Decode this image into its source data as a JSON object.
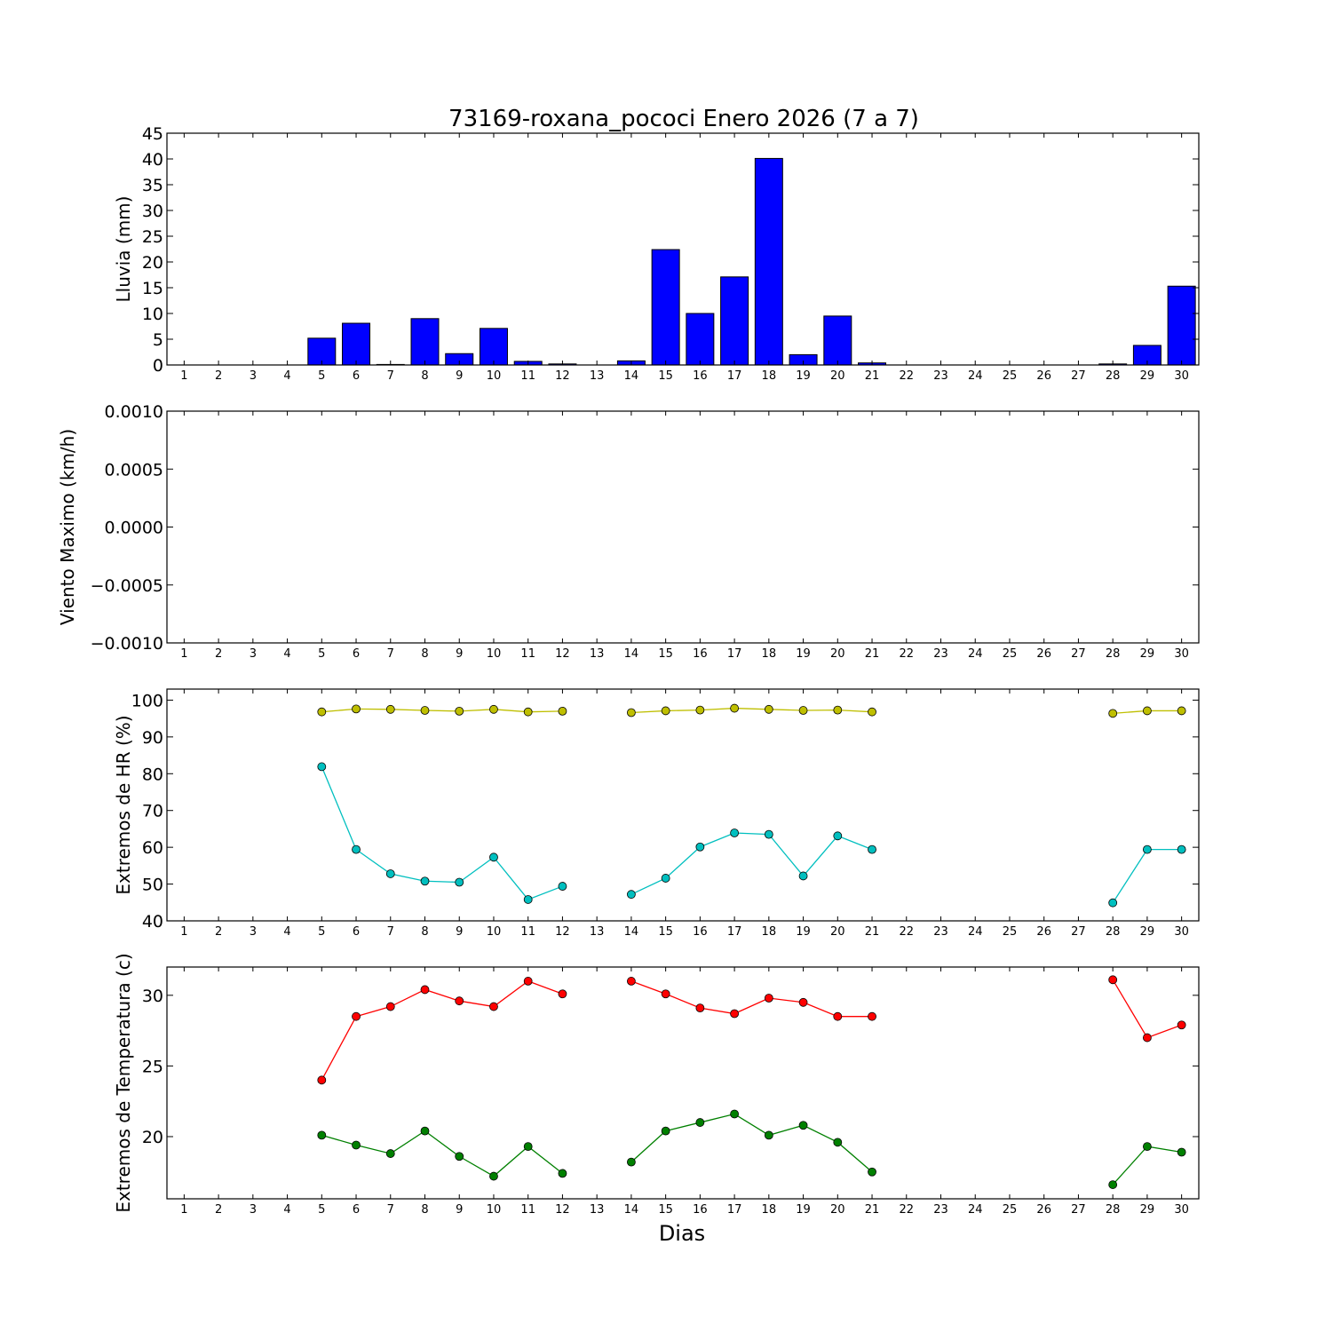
{
  "title": "73169-roxana_pococi Enero 2026  (7 a 7)",
  "xlabel": "Dias",
  "colors": {
    "bar": "#0000ff",
    "hr_max": "#bfbf00",
    "hr_min": "#00bfbf",
    "temp_max": "#ff0000",
    "temp_min": "#008000"
  },
  "chart_data": [
    {
      "type": "bar",
      "ylabel": "Lluvia (mm)",
      "categories": [
        1,
        2,
        3,
        4,
        5,
        6,
        7,
        8,
        9,
        10,
        11,
        12,
        13,
        14,
        15,
        16,
        17,
        18,
        19,
        20,
        21,
        22,
        23,
        24,
        25,
        26,
        27,
        28,
        29,
        30
      ],
      "values": [
        0,
        0,
        0,
        0,
        5.2,
        8.1,
        0.1,
        9.0,
        2.2,
        7.1,
        0.7,
        0.2,
        0,
        0.8,
        22.4,
        10.0,
        17.1,
        40.1,
        2.0,
        9.5,
        0.4,
        0,
        0,
        0,
        0,
        0,
        0,
        0.2,
        3.8,
        15.3
      ],
      "ylim": [
        0,
        45
      ],
      "yticks": [
        "0",
        "5",
        "10",
        "15",
        "20",
        "25",
        "30",
        "35",
        "40",
        "45"
      ]
    },
    {
      "type": "line",
      "ylabel": "Viento Maximo (km/h)",
      "categories": [
        1,
        2,
        3,
        4,
        5,
        6,
        7,
        8,
        9,
        10,
        11,
        12,
        13,
        14,
        15,
        16,
        17,
        18,
        19,
        20,
        21,
        22,
        23,
        24,
        25,
        26,
        27,
        28,
        29,
        30
      ],
      "series": [],
      "ylim": [
        -0.001,
        0.001
      ],
      "yticks": [
        "−0.0010",
        "−0.0005",
        "0.0000",
        "0.0005",
        "0.0010"
      ]
    },
    {
      "type": "line",
      "ylabel": "Extremos de HR (%)",
      "categories": [
        1,
        2,
        3,
        4,
        5,
        6,
        7,
        8,
        9,
        10,
        11,
        12,
        13,
        14,
        15,
        16,
        17,
        18,
        19,
        20,
        21,
        22,
        23,
        24,
        25,
        26,
        27,
        28,
        29,
        30
      ],
      "series": [
        {
          "values": [
            null,
            null,
            null,
            null,
            96.8,
            97.6,
            97.5,
            97.2,
            97.0,
            97.5,
            96.8,
            97.0,
            null,
            96.6,
            97.1,
            97.3,
            97.8,
            97.5,
            97.2,
            97.3,
            96.8,
            null,
            null,
            null,
            null,
            null,
            null,
            96.4,
            97.1,
            97.1
          ]
        },
        {
          "values": [
            null,
            null,
            null,
            null,
            81.9,
            59.4,
            52.8,
            50.8,
            50.5,
            57.3,
            45.8,
            49.4,
            null,
            47.2,
            51.6,
            60.1,
            63.9,
            63.5,
            52.2,
            63.1,
            59.4,
            null,
            null,
            null,
            null,
            null,
            null,
            44.9,
            59.4,
            59.4
          ]
        }
      ],
      "ylim": [
        40,
        103
      ],
      "yticks": [
        "40",
        "50",
        "60",
        "70",
        "80",
        "90",
        "100"
      ]
    },
    {
      "type": "line",
      "ylabel": "Extremos de Temperatura (c)",
      "categories": [
        1,
        2,
        3,
        4,
        5,
        6,
        7,
        8,
        9,
        10,
        11,
        12,
        13,
        14,
        15,
        16,
        17,
        18,
        19,
        20,
        21,
        22,
        23,
        24,
        25,
        26,
        27,
        28,
        29,
        30
      ],
      "series": [
        {
          "values": [
            null,
            null,
            null,
            null,
            24.0,
            28.5,
            29.2,
            30.4,
            29.6,
            29.2,
            31.0,
            30.1,
            null,
            31.0,
            30.1,
            29.1,
            28.7,
            29.8,
            29.5,
            28.5,
            28.5,
            null,
            null,
            null,
            null,
            null,
            null,
            31.1,
            27.0,
            27.9
          ]
        },
        {
          "values": [
            null,
            null,
            null,
            null,
            20.1,
            19.4,
            18.8,
            20.4,
            18.6,
            17.2,
            19.3,
            17.4,
            null,
            18.2,
            20.4,
            21.0,
            21.6,
            20.1,
            20.8,
            19.6,
            17.5,
            null,
            null,
            null,
            null,
            null,
            null,
            16.6,
            19.3,
            18.9
          ]
        }
      ],
      "ylim": [
        15.6,
        32.0
      ],
      "yticks": [
        "20",
        "25",
        "30"
      ]
    }
  ]
}
